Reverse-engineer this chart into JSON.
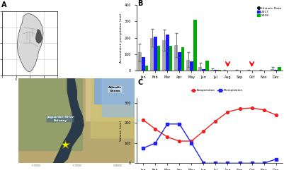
{
  "months": [
    "Jan",
    "Feb",
    "Mar",
    "Apr",
    "May",
    "Jun",
    "Jul",
    "Aug",
    "Sep",
    "Oct",
    "Nov",
    "Dec"
  ],
  "historic_precip": [
    110,
    200,
    185,
    155,
    65,
    20,
    5,
    0,
    0,
    0,
    0,
    10
  ],
  "historic_error": [
    55,
    55,
    65,
    75,
    45,
    25,
    8,
    5,
    5,
    5,
    5,
    12
  ],
  "precip_2017": [
    80,
    205,
    220,
    110,
    55,
    10,
    5,
    0,
    0,
    0,
    0,
    5
  ],
  "precip_2018": [
    30,
    150,
    150,
    140,
    310,
    60,
    5,
    0,
    0,
    0,
    0,
    20
  ],
  "evaporation": [
    215,
    170,
    130,
    110,
    110,
    160,
    210,
    255,
    270,
    275,
    265,
    240
  ],
  "precipitation_c": [
    75,
    100,
    195,
    195,
    100,
    0,
    0,
    0,
    0,
    0,
    0,
    20
  ],
  "red_arrow_months_idx": [
    7,
    9
  ],
  "ylim_b": [
    0,
    400
  ],
  "ylim_c": [
    0,
    325
  ],
  "bar_width": 0.28,
  "historic_color": "#aaaaaa",
  "color_2017": "#1a1aff",
  "color_2018": "#00aa00",
  "evap_color": "#ee2222",
  "precip_color": "#2222ee",
  "background_color": "#ffffff",
  "panel_a_bg": "#f0f0f0",
  "brazil_map_bg": "#ffffff",
  "satellite_bg": "#a0b890"
}
